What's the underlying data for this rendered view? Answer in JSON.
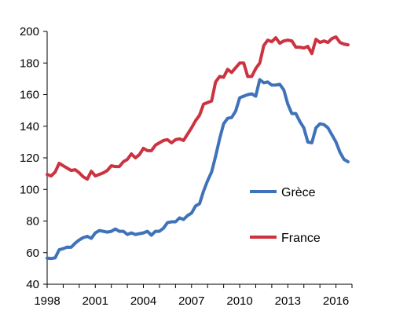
{
  "chart_data": {
    "type": "line",
    "title": "",
    "xlabel": "",
    "ylabel": "",
    "xlim": [
      1998,
      2017
    ],
    "ylim": [
      40,
      200
    ],
    "x_ticks": [
      "1998",
      "2001",
      "2004",
      "2007",
      "2010",
      "2013",
      "2016"
    ],
    "y_ticks": [
      "40",
      "60",
      "80",
      "100",
      "120",
      "140",
      "160",
      "180",
      "200"
    ],
    "grid": false,
    "legend": {
      "placement": "right-center"
    },
    "series": [
      {
        "name": "Grèce",
        "color": "#3f72b8",
        "x": [
          1998.0,
          1998.25,
          1998.5,
          1998.75,
          1999.0,
          1999.25,
          1999.5,
          1999.75,
          2000.0,
          2000.25,
          2000.5,
          2000.75,
          2001.0,
          2001.25,
          2001.5,
          2001.75,
          2002.0,
          2002.25,
          2002.5,
          2002.75,
          2003.0,
          2003.25,
          2003.5,
          2003.75,
          2004.0,
          2004.25,
          2004.5,
          2004.75,
          2005.0,
          2005.25,
          2005.5,
          2005.75,
          2006.0,
          2006.25,
          2006.5,
          2006.75,
          2007.0,
          2007.25,
          2007.5,
          2007.75,
          2008.0,
          2008.25,
          2008.5,
          2008.75,
          2009.0,
          2009.25,
          2009.5,
          2009.75,
          2010.0,
          2010.25,
          2010.5,
          2010.75,
          2011.0,
          2011.25,
          2011.5,
          2011.75,
          2012.0,
          2012.25,
          2012.5,
          2012.75,
          2013.0,
          2013.25,
          2013.5,
          2013.75,
          2014.0,
          2014.25,
          2014.5,
          2014.75,
          2015.0,
          2015.25,
          2015.5,
          2015.75,
          2016.0,
          2016.25,
          2016.5,
          2016.75
        ],
        "values": [
          56.5,
          56.3,
          56.7,
          61.8,
          62.5,
          63.5,
          63.4,
          66.0,
          68.0,
          69.5,
          70.3,
          69.0,
          72.5,
          74.0,
          73.5,
          73.0,
          73.5,
          75.0,
          73.5,
          73.5,
          71.5,
          72.5,
          71.5,
          72.0,
          72.5,
          73.5,
          71.0,
          73.5,
          73.5,
          75.5,
          79.0,
          79.5,
          79.5,
          82.0,
          81.0,
          83.5,
          85.0,
          89.5,
          91.0,
          99.0,
          105.5,
          111.0,
          121.0,
          132.0,
          141.5,
          145.0,
          145.5,
          149.5,
          158.0,
          159.0,
          160.0,
          160.5,
          159.0,
          169.5,
          167.5,
          168.0,
          166.0,
          166.0,
          166.5,
          163.0,
          154.0,
          148.0,
          148.0,
          143.0,
          139.0,
          130.0,
          129.5,
          139.0,
          141.5,
          141.0,
          139.0,
          134.5,
          130.0,
          123.5,
          119.0,
          117.5
        ]
      },
      {
        "name": "France",
        "color": "#cc3340",
        "x": [
          1998.0,
          1998.25,
          1998.5,
          1998.75,
          1999.0,
          1999.25,
          1999.5,
          1999.75,
          2000.0,
          2000.25,
          2000.5,
          2000.75,
          2001.0,
          2001.25,
          2001.5,
          2001.75,
          2002.0,
          2002.25,
          2002.5,
          2002.75,
          2003.0,
          2003.25,
          2003.5,
          2003.75,
          2004.0,
          2004.25,
          2004.5,
          2004.75,
          2005.0,
          2005.25,
          2005.5,
          2005.75,
          2006.0,
          2006.25,
          2006.5,
          2006.75,
          2007.0,
          2007.25,
          2007.5,
          2007.75,
          2008.0,
          2008.25,
          2008.5,
          2008.75,
          2009.0,
          2009.25,
          2009.5,
          2009.75,
          2010.0,
          2010.25,
          2010.5,
          2010.75,
          2011.0,
          2011.25,
          2011.5,
          2011.75,
          2012.0,
          2012.25,
          2012.5,
          2012.75,
          2013.0,
          2013.25,
          2013.5,
          2013.75,
          2014.0,
          2014.25,
          2014.5,
          2014.75,
          2015.0,
          2015.25,
          2015.5,
          2015.75,
          2016.0,
          2016.25,
          2016.5,
          2016.75
        ],
        "values": [
          109.5,
          108.5,
          111.0,
          116.5,
          115.0,
          113.5,
          112.0,
          112.5,
          110.5,
          108.0,
          106.5,
          111.5,
          108.5,
          109.5,
          110.5,
          112.0,
          115.0,
          114.5,
          114.5,
          117.5,
          119.0,
          122.5,
          120.0,
          122.0,
          126.0,
          124.5,
          124.5,
          128.0,
          129.5,
          131.0,
          131.5,
          129.5,
          131.5,
          132.0,
          131.0,
          135.0,
          139.0,
          143.5,
          147.0,
          154.0,
          155.0,
          156.0,
          168.0,
          171.5,
          171.0,
          176.0,
          174.0,
          177.0,
          180.0,
          180.0,
          171.5,
          171.5,
          176.5,
          180.0,
          191.0,
          194.5,
          193.5,
          196.0,
          192.5,
          194.0,
          194.5,
          194.0,
          190.0,
          190.0,
          189.5,
          190.5,
          186.0,
          195.0,
          193.0,
          194.0,
          193.0,
          195.5,
          196.5,
          193.0,
          192.0,
          191.5
        ]
      }
    ]
  }
}
